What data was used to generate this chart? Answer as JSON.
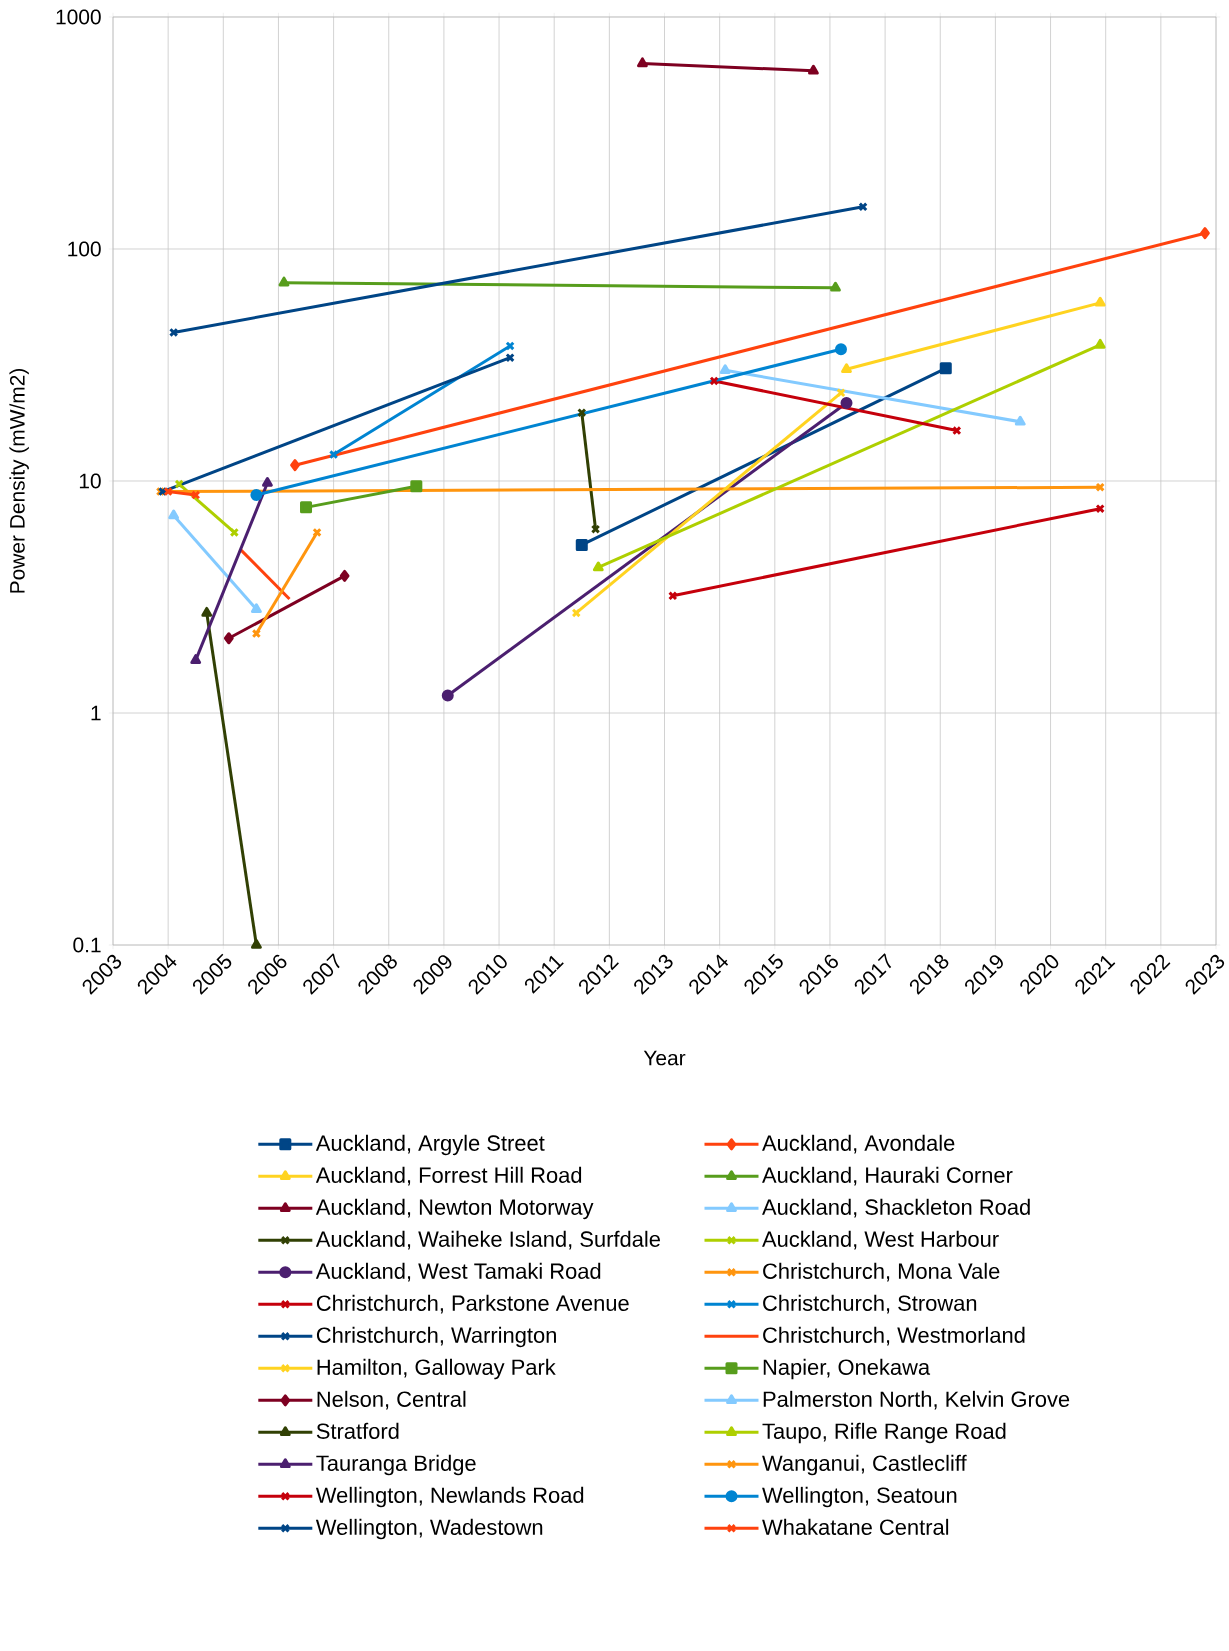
{
  "chart_data": {
    "type": "line",
    "xlabel": "Year",
    "ylabel": "Power Density (mW/m2)",
    "log": "y",
    "grid": true,
    "legend": "bottom",
    "xlim": [
      2003,
      2023
    ],
    "xticks": [
      2003,
      2004,
      2005,
      2006,
      2007,
      2008,
      2009,
      2010,
      2011,
      2012,
      2013,
      2014,
      2015,
      2016,
      2017,
      2018,
      2019,
      2020,
      2021,
      2022,
      2023
    ],
    "ylim": [
      0.1,
      1000
    ],
    "yticks": [
      0.1,
      1,
      10,
      100,
      1000
    ],
    "series": [
      {
        "name": "Auckland, Argyle Street",
        "color": "#004586",
        "marker": "square",
        "x": [
          2011.5,
          2018.1
        ],
        "values": [
          5.3,
          30.6
        ]
      },
      {
        "name": "Auckland, Avondale",
        "color": "#ff420e",
        "marker": "diamond",
        "x": [
          2006.3,
          2022.8
        ],
        "values": [
          11.7,
          117
        ]
      },
      {
        "name": "Auckland, Forrest Hill Road",
        "color": "#ffd320",
        "marker": "triangle",
        "x": [
          2016.3,
          2020.9
        ],
        "values": [
          30.3,
          58.6
        ]
      },
      {
        "name": "Auckland, Hauraki Corner",
        "color": "#579d1c",
        "marker": "triangle",
        "x": [
          2006.1,
          2016.1
        ],
        "values": [
          71.6,
          68
        ]
      },
      {
        "name": "Auckland, Newton Motorway",
        "color": "#7e0021",
        "marker": "triangle",
        "x": [
          2012.6,
          2015.7
        ],
        "values": [
          631,
          586
        ]
      },
      {
        "name": "Auckland, Shackleton Road",
        "color": "#83caff",
        "marker": "triangle",
        "x": [
          2014.1,
          2019.45
        ],
        "values": [
          30,
          18
        ]
      },
      {
        "name": "Auckland, Waiheke Island, Surfdale",
        "color": "#314004",
        "marker": "cross",
        "x": [
          2011.5,
          2011.75
        ],
        "values": [
          19.7,
          6.2
        ]
      },
      {
        "name": "Auckland, West Harbour",
        "color": "#aecf00",
        "marker": "cross",
        "x": [
          2004.2,
          2005.2
        ],
        "values": [
          9.7,
          6.0
        ]
      },
      {
        "name": "Auckland, West Tamaki Road",
        "color": "#4b1f6f",
        "marker": "circle",
        "x": [
          2009.07,
          2016.3
        ],
        "values": [
          1.19,
          21.7
        ]
      },
      {
        "name": "Christchurch, Mona Vale",
        "color": "#ff950e",
        "marker": "cross",
        "x": [
          2003.86,
          2020.9
        ],
        "values": [
          9.0,
          9.4
        ]
      },
      {
        "name": "Christchurch, Parkstone Avenue",
        "color": "#c5000b",
        "marker": "cross",
        "x": [
          2013.15,
          2020.9
        ],
        "values": [
          3.2,
          7.6
        ]
      },
      {
        "name": "Christchurch, Strowan",
        "color": "#0084d1",
        "marker": "cross",
        "x": [
          2007.0,
          2010.2
        ],
        "values": [
          13,
          38.2
        ]
      },
      {
        "name": "Christchurch, Warrington",
        "color": "#004586",
        "marker": "cross",
        "x": [
          2003.9,
          2010.2
        ],
        "values": [
          9.0,
          34
        ]
      },
      {
        "name": "Christchurch, Westmorland",
        "color": "#ff420e",
        "marker": "none",
        "x": [
          2005.3,
          2006.2
        ],
        "values": [
          5.1,
          3.1
        ]
      },
      {
        "name": "Hamilton, Galloway Park",
        "color": "#ffd320",
        "marker": "cross",
        "x": [
          2011.4,
          2016.2
        ],
        "values": [
          2.7,
          24
        ]
      },
      {
        "name": "Napier, Onekawa",
        "color": "#579d1c",
        "marker": "square",
        "x": [
          2006.5,
          2008.5
        ],
        "values": [
          7.7,
          9.5
        ]
      },
      {
        "name": "Nelson, Central",
        "color": "#7e0021",
        "marker": "diamond",
        "x": [
          2005.1,
          2007.2
        ],
        "values": [
          2.1,
          3.9
        ]
      },
      {
        "name": "Palmerston North, Kelvin Grove",
        "color": "#83caff",
        "marker": "triangle",
        "x": [
          2004.1,
          2005.6
        ],
        "values": [
          7.1,
          2.8
        ]
      },
      {
        "name": "Stratford",
        "color": "#314004",
        "marker": "triangle",
        "x": [
          2004.7,
          2005.6
        ],
        "values": [
          2.7,
          0.1
        ]
      },
      {
        "name": "Taupo, Rifle Range Road",
        "color": "#aecf00",
        "marker": "triangle",
        "x": [
          2011.8,
          2020.9
        ],
        "values": [
          4.24,
          38.6
        ]
      },
      {
        "name": "Tauranga Bridge",
        "color": "#4b1f6f",
        "marker": "triangle",
        "x": [
          2004.5,
          2005.8
        ],
        "values": [
          1.69,
          9.8
        ]
      },
      {
        "name": "Wanganui, Castlecliff",
        "color": "#ff950e",
        "marker": "cross",
        "x": [
          2005.6,
          2006.7
        ],
        "values": [
          2.2,
          6.0
        ]
      },
      {
        "name": "Wellington, Newlands Road",
        "color": "#c5000b",
        "marker": "cross",
        "x": [
          2013.9,
          2018.3
        ],
        "values": [
          27,
          16.5
        ]
      },
      {
        "name": "Wellington, Seatoun",
        "color": "#0084d1",
        "marker": "circle",
        "x": [
          2005.6,
          2016.2
        ],
        "values": [
          8.7,
          37
        ]
      },
      {
        "name": "Wellington, Wadestown",
        "color": "#004586",
        "marker": "cross",
        "x": [
          2004.1,
          2016.6
        ],
        "values": [
          43.7,
          152
        ]
      },
      {
        "name": "Whakatane Central",
        "color": "#ff420e",
        "marker": "cross",
        "x": [
          2004.0,
          2004.5
        ],
        "values": [
          9.0,
          8.7
        ]
      }
    ]
  }
}
